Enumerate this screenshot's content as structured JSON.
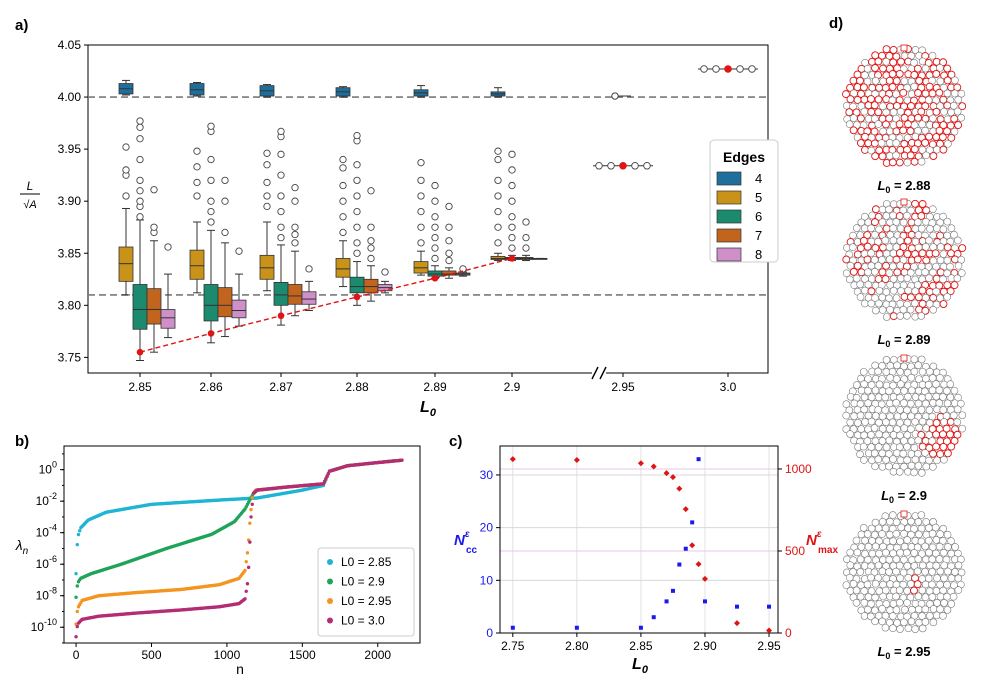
{
  "panels": {
    "a": "a)",
    "b": "b)",
    "c": "c)",
    "d": "d)"
  },
  "legend_a": {
    "title": "Edges",
    "items": [
      {
        "label": "4",
        "color": "#1f6f9c"
      },
      {
        "label": "5",
        "color": "#c99218"
      },
      {
        "label": "6",
        "color": "#1c8a6e"
      },
      {
        "label": "7",
        "color": "#c0641e"
      },
      {
        "label": "8",
        "color": "#cf8fc9"
      }
    ]
  },
  "legend_b": [
    {
      "label": "L0 = 2.85",
      "color": "#1fb4d4"
    },
    {
      "label": "L0 = 2.9",
      "color": "#1fa45a"
    },
    {
      "label": "L0 = 2.95",
      "color": "#f3951f"
    },
    {
      "label": "L0 = 3.0",
      "color": "#b32d74"
    }
  ],
  "chart_data": [
    {
      "id": "a",
      "type": "box",
      "title": "",
      "xlabel": "L",
      "xlabel_sub": "0",
      "ylabel_num": "L",
      "ylabel_den": "√A",
      "ylim": [
        3.735,
        4.05
      ],
      "yticks": [
        "3.75",
        "3.80",
        "3.85",
        "3.90",
        "3.95",
        "4.00",
        "4.05"
      ],
      "reference_lines": [
        4.0,
        3.81
      ],
      "categories": [
        "2.85",
        "2.86",
        "2.87",
        "2.88",
        "2.89",
        "2.9",
        "2.95",
        "3.0"
      ],
      "axis_break_between": [
        "2.9",
        "2.95"
      ],
      "groups": [
        {
          "L0": "2.85",
          "boxes": [
            {
              "edges": 4,
              "q1": 4.003,
              "med": 4.008,
              "q3": 4.013,
              "wlo": 4.002,
              "whi": 4.016,
              "out": []
            },
            {
              "edges": 5,
              "q1": 3.823,
              "med": 3.84,
              "q3": 3.856,
              "wlo": 3.81,
              "whi": 3.893,
              "out": [
                3.905,
                3.925,
                3.93,
                3.952
              ]
            },
            {
              "edges": 6,
              "q1": 3.777,
              "med": 3.796,
              "q3": 3.82,
              "wlo": 3.747,
              "whi": 3.882,
              "out": [
                3.885,
                3.895,
                3.9,
                3.91,
                3.92,
                3.94,
                3.96,
                3.971,
                3.977
              ]
            },
            {
              "edges": 7,
              "q1": 3.782,
              "med": 3.796,
              "q3": 3.816,
              "wlo": 3.755,
              "whi": 3.862,
              "out": [
                3.87,
                3.875,
                3.911
              ]
            },
            {
              "edges": 8,
              "q1": 3.778,
              "med": 3.788,
              "q3": 3.796,
              "wlo": 3.769,
              "whi": 3.83,
              "out": [
                3.856
              ]
            }
          ]
        },
        {
          "L0": "2.86",
          "boxes": [
            {
              "edges": 4,
              "q1": 4.002,
              "med": 4.007,
              "q3": 4.013,
              "wlo": 4.001,
              "whi": 4.014,
              "out": []
            },
            {
              "edges": 5,
              "q1": 3.825,
              "med": 3.838,
              "q3": 3.853,
              "wlo": 3.812,
              "whi": 3.88,
              "out": [
                3.905,
                3.918,
                3.933,
                3.948
              ]
            },
            {
              "edges": 6,
              "q1": 3.785,
              "med": 3.8,
              "q3": 3.82,
              "wlo": 3.764,
              "whi": 3.872,
              "out": [
                3.88,
                3.89,
                3.9,
                3.92,
                3.94,
                3.967,
                3.972
              ]
            },
            {
              "edges": 7,
              "q1": 3.789,
              "med": 3.8,
              "q3": 3.817,
              "wlo": 3.77,
              "whi": 3.86,
              "out": [
                3.87,
                3.9,
                3.92
              ]
            },
            {
              "edges": 8,
              "q1": 3.788,
              "med": 3.795,
              "q3": 3.805,
              "wlo": 3.78,
              "whi": 3.83,
              "out": [
                3.852
              ]
            }
          ]
        },
        {
          "L0": "2.87",
          "boxes": [
            {
              "edges": 4,
              "q1": 4.001,
              "med": 4.006,
              "q3": 4.011,
              "wlo": 4.0,
              "whi": 4.012,
              "out": []
            },
            {
              "edges": 5,
              "q1": 3.825,
              "med": 3.836,
              "q3": 3.848,
              "wlo": 3.814,
              "whi": 3.88,
              "out": [
                3.895,
                3.905,
                3.918,
                3.935,
                3.946
              ]
            },
            {
              "edges": 6,
              "q1": 3.8,
              "med": 3.81,
              "q3": 3.822,
              "wlo": 3.781,
              "whi": 3.858,
              "out": [
                3.865,
                3.875,
                3.89,
                3.905,
                3.925,
                3.945,
                3.962,
                3.967
              ]
            },
            {
              "edges": 7,
              "q1": 3.801,
              "med": 3.809,
              "q3": 3.82,
              "wlo": 3.79,
              "whi": 3.852,
              "out": [
                3.86,
                3.868,
                3.875,
                3.9,
                3.913
              ]
            },
            {
              "edges": 8,
              "q1": 3.801,
              "med": 3.806,
              "q3": 3.813,
              "wlo": 3.795,
              "whi": 3.823,
              "out": [
                3.835
              ]
            }
          ]
        },
        {
          "L0": "2.88",
          "boxes": [
            {
              "edges": 4,
              "q1": 4.001,
              "med": 4.005,
              "q3": 4.009,
              "wlo": 4.0,
              "whi": 4.01,
              "out": []
            },
            {
              "edges": 5,
              "q1": 3.827,
              "med": 3.835,
              "q3": 3.845,
              "wlo": 3.818,
              "whi": 3.862,
              "out": [
                3.87,
                3.885,
                3.9,
                3.915,
                3.932,
                3.94
              ]
            },
            {
              "edges": 6,
              "q1": 3.812,
              "med": 3.818,
              "q3": 3.827,
              "wlo": 3.8,
              "whi": 3.842,
              "out": [
                3.85,
                3.86,
                3.875,
                3.89,
                3.905,
                3.92,
                3.935,
                3.958,
                3.963
              ]
            },
            {
              "edges": 7,
              "q1": 3.812,
              "med": 3.818,
              "q3": 3.825,
              "wlo": 3.804,
              "whi": 3.838,
              "out": [
                3.845,
                3.855,
                3.862,
                3.875,
                3.91
              ]
            },
            {
              "edges": 8,
              "q1": 3.814,
              "med": 3.817,
              "q3": 3.82,
              "wlo": 3.812,
              "whi": 3.823,
              "out": [
                3.832
              ]
            }
          ]
        },
        {
          "L0": "2.89",
          "boxes": [
            {
              "edges": 4,
              "q1": 4.001,
              "med": 4.004,
              "q3": 4.007,
              "wlo": 4.0,
              "whi": 4.011,
              "out": []
            },
            {
              "edges": 5,
              "q1": 3.831,
              "med": 3.836,
              "q3": 3.842,
              "wlo": 3.829,
              "whi": 3.852,
              "out": [
                3.86,
                3.875,
                3.89,
                3.905,
                3.92,
                3.937
              ]
            },
            {
              "edges": 6,
              "q1": 3.828,
              "med": 3.83,
              "q3": 3.833,
              "wlo": 3.826,
              "whi": 3.838,
              "out": [
                3.845,
                3.855,
                3.865,
                3.875,
                3.885,
                3.9,
                3.915
              ]
            },
            {
              "edges": 7,
              "q1": 3.829,
              "med": 3.83,
              "q3": 3.833,
              "wlo": 3.826,
              "whi": 3.836,
              "out": [
                3.843,
                3.85,
                3.862,
                3.875,
                3.895
              ]
            },
            {
              "edges": 8,
              "q1": 3.829,
              "med": 3.83,
              "q3": 3.831,
              "wlo": 3.828,
              "whi": 3.832,
              "out": [
                3.835
              ]
            }
          ]
        },
        {
          "L0": "2.9",
          "boxes": [
            {
              "edges": 4,
              "q1": 4.001,
              "med": 4.003,
              "q3": 4.005,
              "wlo": 4.0,
              "whi": 4.009,
              "out": []
            },
            {
              "edges": 5,
              "q1": 3.844,
              "med": 3.845,
              "q3": 3.847,
              "wlo": 3.843,
              "whi": 3.85,
              "out": [
                3.86,
                3.875,
                3.89,
                3.905,
                3.92,
                3.94,
                3.948
              ]
            },
            {
              "edges": 6,
              "q1": 3.844,
              "med": 3.845,
              "q3": 3.846,
              "wlo": 3.843,
              "whi": 3.848,
              "out": [
                3.855,
                3.865,
                3.875,
                3.885,
                3.9,
                3.915,
                3.93,
                3.945
              ]
            },
            {
              "edges": 7,
              "q1": 3.844,
              "med": 3.845,
              "q3": 3.846,
              "wlo": 3.843,
              "whi": 3.848,
              "out": [
                3.855,
                3.865,
                3.88
              ]
            },
            {
              "edges": 8,
              "q1": 3.845,
              "med": 3.845,
              "q3": 3.845,
              "wlo": 3.845,
              "whi": 3.845,
              "out": []
            }
          ]
        }
      ],
      "marker_rows": [
        {
          "L0": "2.95",
          "y": 4.001,
          "points": 1,
          "red_index": -1
        },
        {
          "L0": "2.95",
          "y": 3.934,
          "points": 5,
          "red_index": 2
        },
        {
          "L0": "3.0",
          "y": 4.027,
          "points": 5,
          "red_index": 2
        }
      ],
      "red_trend": {
        "x": [
          "2.85",
          "2.86",
          "2.87",
          "2.88",
          "2.89",
          "2.9"
        ],
        "y": [
          3.755,
          3.773,
          3.79,
          3.808,
          3.826,
          3.845
        ]
      }
    },
    {
      "id": "b",
      "type": "scatter",
      "xlabel": "n",
      "ylabel": "λ",
      "ylabel_sub": "n",
      "yscale": "log",
      "xlim": [
        -80,
        2280
      ],
      "xticks": [
        "0",
        "500",
        "1000",
        "1500",
        "2000"
      ],
      "ylim_log10": [
        -11,
        1.5
      ],
      "yticks": [
        {
          "exp": 0,
          "label": "10^0"
        },
        {
          "exp": -2,
          "label": "10^-2"
        },
        {
          "exp": -4,
          "label": "10^-4"
        },
        {
          "exp": -6,
          "label": "10^-6"
        },
        {
          "exp": -8,
          "label": "10^-8"
        },
        {
          "exp": -10,
          "label": "10^-10"
        }
      ],
      "series": [
        {
          "name": "L0 = 2.85",
          "x": [
            0,
            10,
            30,
            80,
            200,
            500,
            1000,
            1200,
            1500,
            1640,
            1680,
            1800,
            2000,
            2160
          ],
          "log10y": [
            -6.6,
            -4.3,
            -3.7,
            -3.2,
            -2.7,
            -2.2,
            -1.9,
            -1.8,
            -1.3,
            -1.0,
            -0.1,
            0.25,
            0.45,
            0.6
          ]
        },
        {
          "name": "L0 = 2.9",
          "x": [
            0,
            10,
            30,
            100,
            300,
            600,
            900,
            1050,
            1120,
            1170,
            1200,
            1400,
            1640,
            1680,
            1800,
            2000,
            2160
          ],
          "log10y": [
            -8.1,
            -7.2,
            -6.9,
            -6.6,
            -6.0,
            -5.0,
            -4.1,
            -3.3,
            -2.5,
            -1.6,
            -1.3,
            -1.1,
            -0.9,
            -0.1,
            0.25,
            0.45,
            0.6
          ]
        },
        {
          "name": "L0 = 2.95",
          "x": [
            0,
            10,
            40,
            150,
            400,
            700,
            950,
            1080,
            1120,
            1140,
            1155,
            1170,
            1190,
            1400,
            1640,
            1680,
            1800,
            2000,
            2160
          ],
          "log10y": [
            -9.8,
            -8.8,
            -8.3,
            -8.0,
            -7.8,
            -7.6,
            -7.3,
            -6.9,
            -6.4,
            -5.0,
            -3.0,
            -1.6,
            -1.3,
            -1.1,
            -0.9,
            -0.1,
            0.25,
            0.45,
            0.6
          ]
        },
        {
          "name": "L0 = 3.0",
          "x": [
            0,
            10,
            40,
            150,
            400,
            700,
            950,
            1080,
            1120,
            1140,
            1150,
            1160,
            1175,
            1200,
            1400,
            1640,
            1680,
            1800,
            2000,
            2160
          ],
          "log10y": [
            -10.6,
            -9.8,
            -9.5,
            -9.3,
            -9.1,
            -8.9,
            -8.7,
            -8.5,
            -8.2,
            -7.0,
            -5.0,
            -3.0,
            -1.5,
            -1.3,
            -1.1,
            -0.9,
            -0.1,
            0.25,
            0.45,
            0.6
          ]
        }
      ]
    },
    {
      "id": "c",
      "type": "scatter",
      "xlabel": "L",
      "xlabel_sub": "0",
      "xlim": [
        2.74,
        2.957
      ],
      "xticks": [
        "2.75",
        "2.80",
        "2.85",
        "2.90",
        "2.95"
      ],
      "left_axis": {
        "label": "N",
        "sup": "ε",
        "sub": "cc",
        "color": "#1a1aee",
        "ylim": [
          0,
          35.5
        ],
        "yticks": [
          "0",
          "10",
          "20",
          "30"
        ]
      },
      "right_axis": {
        "label": "N",
        "sup": "ε",
        "sub": "max",
        "color": "#e01414",
        "ylim": [
          0,
          1140
        ],
        "yticks": [
          "0",
          "500",
          "1000"
        ]
      },
      "series": [
        {
          "name": "N_cc",
          "axis": "left",
          "color": "#1a1aee",
          "marker": "square",
          "x": [
            2.75,
            2.8,
            2.85,
            2.86,
            2.87,
            2.875,
            2.88,
            2.885,
            2.89,
            2.895,
            2.9,
            2.925,
            2.95
          ],
          "y": [
            1,
            1,
            1,
            3,
            6,
            8,
            13,
            16,
            21,
            33,
            6,
            5,
            5
          ]
        },
        {
          "name": "N_max",
          "axis": "right",
          "color": "#e01414",
          "marker": "diamond",
          "x": [
            2.75,
            2.8,
            2.85,
            2.86,
            2.87,
            2.875,
            2.88,
            2.885,
            2.89,
            2.895,
            2.9,
            2.925,
            2.95
          ],
          "y": [
            1060,
            1055,
            1035,
            1015,
            975,
            950,
            880,
            755,
            535,
            420,
            330,
            60,
            15
          ]
        }
      ]
    }
  ],
  "panel_d": {
    "items": [
      {
        "label": "L0 = 2.88",
        "red_fraction": 0.62
      },
      {
        "label": "L0 = 2.89",
        "red_fraction": 0.36
      },
      {
        "label": "L0 = 2.9",
        "red_fraction": 0.1
      },
      {
        "label": "L0 = 2.95",
        "red_fraction": 0.025
      }
    ]
  }
}
